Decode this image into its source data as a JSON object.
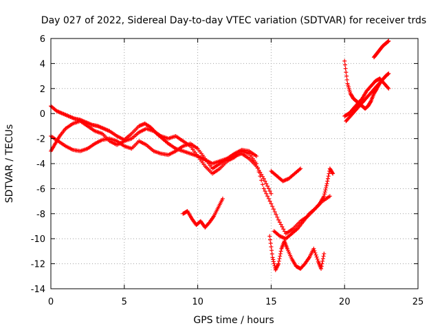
{
  "chart_data": {
    "type": "scatter",
    "title": "Day 027 of 2022, Sidereal Day-to-day VTEC variation (SDTVAR) for receiver trds",
    "xlabel": "GPS time / hours",
    "ylabel": "SDTVAR / TECUs",
    "xlim": [
      0,
      25
    ],
    "ylim": [
      -14,
      6
    ],
    "xticks": [
      "0",
      "5",
      "10",
      "15",
      "20",
      "25"
    ],
    "yticks": [
      "-14",
      "-12",
      "-10",
      "-8",
      "-6",
      "-4",
      "-2",
      "0",
      "2",
      "4",
      "6"
    ],
    "grid": true,
    "legend": "none",
    "marker": "plus",
    "color": "#ff0000",
    "series": [
      {
        "name": "",
        "x": [
          0.0,
          0.3,
          0.6,
          1.0,
          1.5,
          2.0,
          2.5,
          3.0,
          3.5,
          4.0,
          4.5,
          5.0,
          5.5,
          6.0,
          6.5,
          7.0,
          7.5,
          8.0,
          8.5,
          9.0,
          9.5,
          10.0,
          10.5,
          11.0,
          11.5,
          12.0,
          12.5,
          13.0,
          13.5,
          14.0,
          14.5,
          15.0,
          15.5,
          16.0,
          16.5,
          17.0,
          17.5,
          18.0,
          18.5,
          19.0
        ],
        "y": [
          -3.0,
          -2.4,
          -1.8,
          -1.2,
          -0.8,
          -0.6,
          -1.0,
          -1.4,
          -1.6,
          -2.2,
          -2.5,
          -2.2,
          -2.0,
          -1.5,
          -1.2,
          -1.4,
          -1.8,
          -2.0,
          -1.8,
          -2.2,
          -2.6,
          -3.4,
          -4.2,
          -4.8,
          -4.4,
          -3.8,
          -3.5,
          -3.0,
          -3.2,
          -4.0,
          -6.0,
          -7.2,
          -8.5,
          -9.6,
          -9.2,
          -8.6,
          -8.2,
          -7.6,
          -7.0,
          -6.6
        ]
      },
      {
        "name": "",
        "x": [
          0.0,
          0.4,
          0.8,
          1.2,
          1.6,
          2.0,
          2.4,
          2.8,
          3.2,
          3.6,
          4.0,
          4.5,
          5.0,
          5.5,
          6.0,
          6.4,
          6.8,
          7.2,
          7.6,
          8.0,
          8.5,
          9.0,
          9.5,
          10.0,
          10.5,
          11.0,
          11.5,
          12.0,
          12.5,
          13.0,
          13.5,
          14.0,
          14.5,
          15.0
        ],
        "y": [
          0.6,
          0.2,
          0.0,
          -0.2,
          -0.4,
          -0.5,
          -0.7,
          -0.9,
          -1.0,
          -1.2,
          -1.4,
          -1.8,
          -2.1,
          -1.6,
          -1.0,
          -0.8,
          -1.1,
          -1.6,
          -2.0,
          -2.4,
          -2.8,
          -3.0,
          -3.2,
          -3.4,
          -3.7,
          -4.0,
          -3.8,
          -3.6,
          -3.4,
          -3.2,
          -3.6,
          -4.2,
          -5.2,
          -6.4
        ]
      },
      {
        "name": "",
        "x": [
          0.0,
          0.5,
          1.0,
          1.5,
          2.0,
          2.5,
          3.0,
          3.5,
          4.0,
          4.5,
          5.0,
          5.5,
          6.0,
          6.5,
          7.0,
          7.5,
          8.0,
          8.5,
          9.0,
          9.5,
          10.0,
          10.5,
          11.0,
          11.5,
          12.0,
          12.5,
          13.0,
          13.5,
          14.0
        ],
        "y": [
          -1.8,
          -2.2,
          -2.6,
          -2.9,
          -3.0,
          -2.8,
          -2.4,
          -2.1,
          -2.0,
          -2.2,
          -2.6,
          -2.8,
          -2.2,
          -2.5,
          -3.0,
          -3.2,
          -3.3,
          -3.0,
          -2.6,
          -2.4,
          -2.8,
          -3.6,
          -4.4,
          -4.0,
          -3.6,
          -3.2,
          -2.9,
          -3.0,
          -3.4
        ]
      },
      {
        "name": "",
        "x": [
          9.0,
          9.3,
          9.6,
          9.9,
          10.2,
          10.5,
          10.8,
          11.1,
          11.4,
          11.7
        ],
        "y": [
          -8.0,
          -7.8,
          -8.4,
          -8.9,
          -8.6,
          -9.1,
          -8.7,
          -8.2,
          -7.5,
          -6.8
        ]
      },
      {
        "name": "",
        "x": [
          14.9,
          15.1,
          15.3,
          15.5,
          15.7,
          15.9,
          16.1,
          16.4,
          16.7,
          17.0,
          17.3,
          17.6,
          17.9,
          18.2,
          18.4,
          18.6
        ],
        "y": [
          -9.8,
          -11.5,
          -12.5,
          -12.0,
          -10.8,
          -10.2,
          -10.8,
          -11.6,
          -12.2,
          -12.4,
          -12.0,
          -11.5,
          -10.8,
          -11.8,
          -12.4,
          -11.2
        ]
      },
      {
        "name": "",
        "x": [
          15.2,
          15.6,
          16.0,
          16.4,
          16.8,
          17.2,
          17.6,
          18.0,
          18.3,
          18.6,
          18.8,
          19.0,
          19.2
        ],
        "y": [
          -9.4,
          -9.8,
          -10.0,
          -9.6,
          -9.2,
          -8.6,
          -8.0,
          -7.6,
          -7.2,
          -6.6,
          -5.6,
          -4.4,
          -4.8
        ]
      },
      {
        "name": "",
        "x": [
          15.0,
          15.4,
          15.8,
          16.2,
          16.6,
          17.0
        ],
        "y": [
          -4.6,
          -5.0,
          -5.4,
          -5.2,
          -4.8,
          -4.4
        ]
      },
      {
        "name": "",
        "x": [
          20.0,
          20.2,
          20.4,
          20.6,
          20.8,
          21.0,
          21.2,
          21.4,
          21.6,
          21.8,
          22.0,
          22.2,
          22.5,
          22.8,
          23.0
        ],
        "y": [
          4.2,
          2.4,
          1.6,
          1.2,
          1.0,
          0.8,
          0.6,
          0.4,
          0.6,
          1.0,
          1.6,
          2.0,
          2.6,
          3.0,
          3.2
        ]
      },
      {
        "name": "",
        "x": [
          20.0,
          20.3,
          20.6,
          20.9,
          21.2,
          21.5,
          21.8,
          22.1,
          22.4,
          22.7,
          23.0
        ],
        "y": [
          -0.2,
          0.0,
          0.4,
          0.8,
          1.2,
          1.8,
          2.2,
          2.6,
          2.8,
          2.4,
          2.0
        ]
      },
      {
        "name": "",
        "x": [
          20.1,
          20.4,
          20.7,
          21.0,
          21.3,
          21.6,
          21.9,
          22.2,
          22.5,
          22.8
        ],
        "y": [
          -0.6,
          -0.2,
          0.2,
          0.6,
          1.0,
          1.4,
          1.8,
          2.2,
          2.6,
          3.0
        ]
      },
      {
        "name": "",
        "x": [
          22.0,
          22.2,
          22.4,
          22.6,
          22.8,
          23.0
        ],
        "y": [
          4.5,
          4.8,
          5.1,
          5.4,
          5.6,
          5.8
        ]
      }
    ]
  }
}
